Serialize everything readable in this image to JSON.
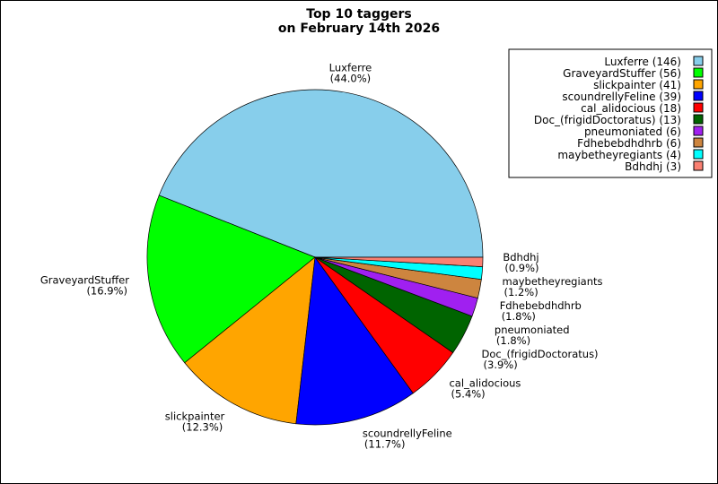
{
  "chart_data": {
    "type": "pie",
    "title": [
      "Top 10 taggers",
      "on February 14th 2026"
    ],
    "start_angle_deg": 0,
    "direction": "counterclockwise",
    "legend_position": "top-right",
    "slices": [
      {
        "name": "Luxferre",
        "value": 146,
        "percent": "44.0%",
        "color": "#87CEEB"
      },
      {
        "name": "GraveyardStuffer",
        "value": 56,
        "percent": "16.9%",
        "color": "#00FF00"
      },
      {
        "name": "slickpainter",
        "value": 41,
        "percent": "12.3%",
        "color": "#FFA500"
      },
      {
        "name": "scoundrellyFeline",
        "value": 39,
        "percent": "11.7%",
        "color": "#0000FF"
      },
      {
        "name": "cal_alidocious",
        "value": 18,
        "percent": "5.4%",
        "color": "#FF0000"
      },
      {
        "name": "Doc_(frigidDoctoratus)",
        "value": 13,
        "percent": "3.9%",
        "color": "#006400"
      },
      {
        "name": "pneumoniated",
        "value": 6,
        "percent": "1.8%",
        "color": "#A020F0"
      },
      {
        "name": "Fdhebebdhdhrb",
        "value": 6,
        "percent": "1.8%",
        "color": "#CD853F"
      },
      {
        "name": "maybetheyregiants",
        "value": 4,
        "percent": "1.2%",
        "color": "#00FFFF"
      },
      {
        "name": "Bdhdhj",
        "value": 3,
        "percent": "0.9%",
        "color": "#FA8072"
      }
    ]
  }
}
